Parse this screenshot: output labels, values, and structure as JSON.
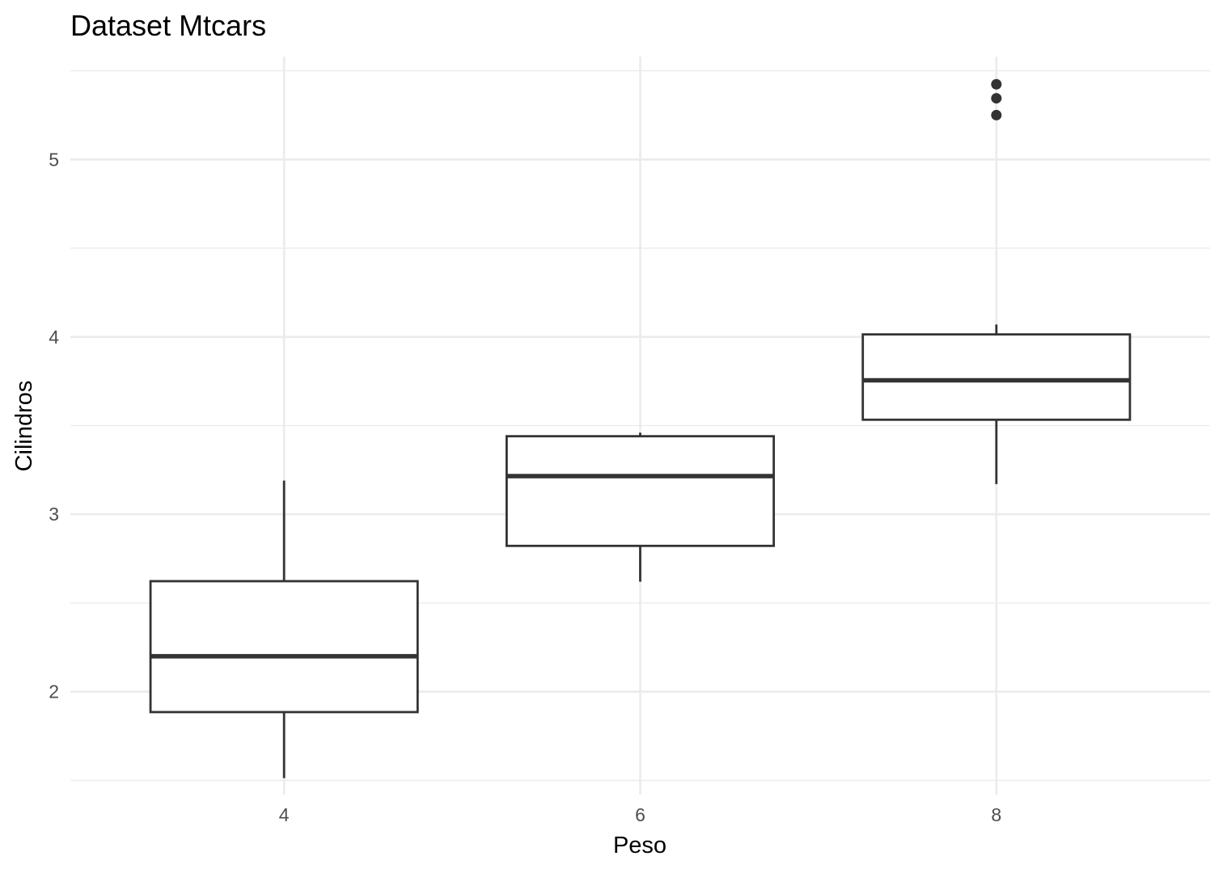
{
  "chart_data": {
    "type": "box",
    "title": "Dataset Mtcars",
    "xlabel": "Peso",
    "ylabel": "Cilindros",
    "xlim": [
      2.8,
      9.2
    ],
    "ylim": [
      1.42,
      5.58
    ],
    "x_ticks": [
      4,
      6,
      8
    ],
    "y_ticks": [
      2,
      3,
      4,
      5
    ],
    "y_minor_ticks": [
      1.5,
      2.5,
      3.5,
      4.5,
      5.5
    ],
    "grid": true,
    "legend": "none",
    "series": [
      {
        "x": 4,
        "whisker_low": 1.513,
        "q1": 1.885,
        "median": 2.2,
        "q3": 2.623,
        "whisker_high": 3.19,
        "outliers": []
      },
      {
        "x": 6,
        "whisker_low": 2.62,
        "q1": 2.822,
        "median": 3.215,
        "q3": 3.44,
        "whisker_high": 3.46,
        "outliers": []
      },
      {
        "x": 8,
        "whisker_low": 3.17,
        "q1": 3.533,
        "median": 3.755,
        "q3": 4.014,
        "whisker_high": 4.07,
        "outliers": [
          5.25,
          5.345,
          5.424
        ]
      }
    ],
    "colors": {
      "box_stroke": "#333333",
      "box_fill": "#ffffff",
      "grid": "#ebebeb"
    }
  }
}
